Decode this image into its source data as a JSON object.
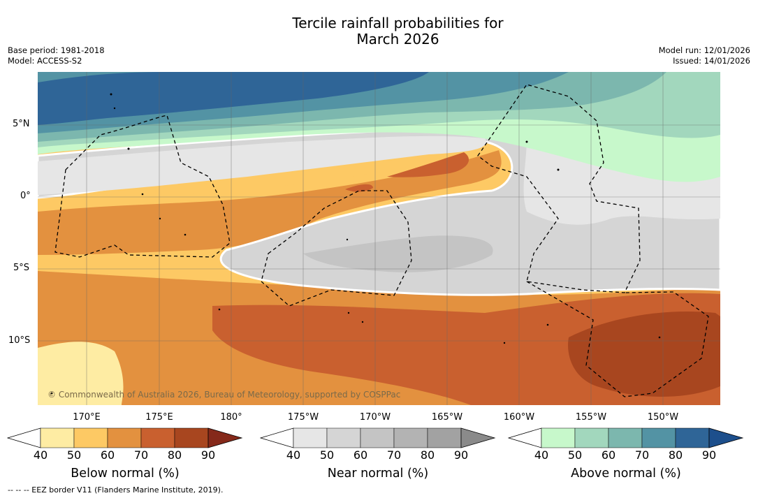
{
  "title_line1": "Tercile rainfall probabilities for",
  "title_line2": "March 2026",
  "meta_left": {
    "base_period": "Base period: 1981-2018",
    "model": "Model: ACCESS-S2"
  },
  "meta_right": {
    "model_run": "Model run: 12/01/2026",
    "issued": "Issued: 14/01/2026"
  },
  "map": {
    "lat_labels": [
      "5°N",
      "0°",
      "5°S",
      "10°S"
    ],
    "lon_labels": [
      "170°E",
      "175°E",
      "180°",
      "175°W",
      "170°W",
      "165°W",
      "160°W",
      "155°W",
      "150°W"
    ],
    "copyright": "© Commonwealth of Australia 2026, Bureau of Meteorology, supported by COSPPac"
  },
  "colorbars": [
    {
      "label": "Below normal (%)",
      "ticks": [
        "40",
        "50",
        "60",
        "70",
        "80",
        "90"
      ],
      "colors": [
        "#ffffff",
        "#feeca3",
        "#fdc964",
        "#e3913f",
        "#c9602f",
        "#a8461f",
        "#85291a"
      ]
    },
    {
      "label": "Near normal (%)",
      "ticks": [
        "40",
        "50",
        "60",
        "70",
        "80",
        "90"
      ],
      "colors": [
        "#ffffff",
        "#e6e6e6",
        "#d5d5d5",
        "#c4c4c4",
        "#b3b3b3",
        "#a2a2a2",
        "#8a8a8a"
      ]
    },
    {
      "label": "Above normal (%)",
      "ticks": [
        "40",
        "50",
        "60",
        "70",
        "80",
        "90"
      ],
      "colors": [
        "#ffffff",
        "#c7f8cb",
        "#a2d7bd",
        "#7cb7ae",
        "#5393a4",
        "#2f6597",
        "#1d4f8c"
      ]
    }
  ],
  "footnote": "--  --  -- EEZ border V11 (Flanders Marine Institute, 2019)."
}
